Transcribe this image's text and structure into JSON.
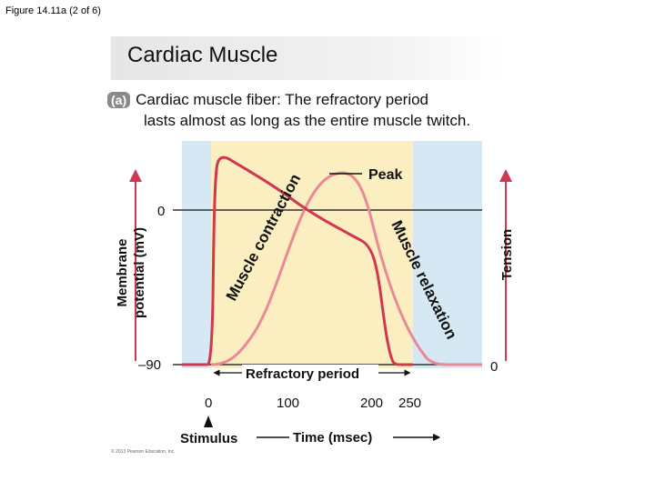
{
  "figure_label": "Figure 14.11a (2 of 6)",
  "banner_title": "Cardiac Muscle",
  "caption": {
    "badge": "(a)",
    "bold": "Cardiac muscle fiber:",
    "rest": "The refractory period",
    "line2": "lasts almost as long as the entire muscle twitch."
  },
  "axes": {
    "left_label_line1": "Membrane",
    "left_label_line2": "potential (mV)",
    "right_label": "Tension",
    "y_tick_top": "0",
    "y_tick_bottom": "–90",
    "right_tick": "0",
    "x_ticks": [
      "0",
      "100",
      "200",
      "250"
    ],
    "x_label": "Time (msec)",
    "stimulus_label": "Stimulus"
  },
  "annotations": {
    "peak": "Peak",
    "contraction": "Muscle contraction",
    "relaxation": "Muscle relaxation",
    "refractory": "Refractory period"
  },
  "copyright": "© 2013 Pearson Education, Inc.",
  "colors": {
    "outer_bg": "#d6e8f3",
    "refractory_bg": "#fbeec0",
    "membrane_curve": "#d0384f",
    "tension_curve": "#e98a98",
    "arrow": "#d0384f"
  }
}
